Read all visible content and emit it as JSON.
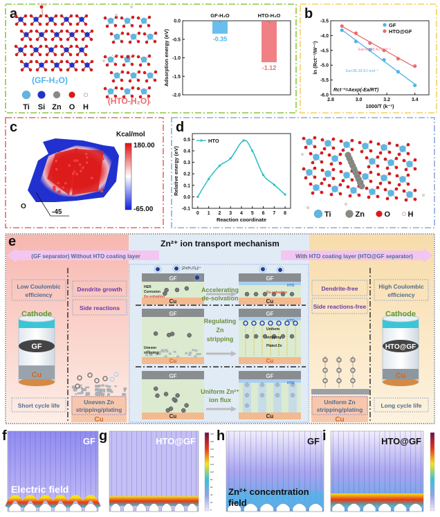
{
  "colors": {
    "ti": "#5fb6e3",
    "si": "#2233cc",
    "zn": "#8a8a85",
    "o": "#e01818",
    "h": "#f3d0d0",
    "gf_blue": "#4fb3ea",
    "hto_red": "#ee6a6e",
    "green_frame": "#8cc63f",
    "yellow_frame": "#f3cf62",
    "red_frame": "#e8676b",
    "blue_frame": "#8ea8d8",
    "line_teal": "#27bcc4"
  },
  "panel_a": {
    "label": "a",
    "gf_caption": "(GF-H₂O)",
    "hto_caption": "(HTO-H₂O)",
    "legend": [
      {
        "el": "Ti",
        "icon": "ti-atom-icon"
      },
      {
        "el": "Si",
        "icon": "si-atom-icon"
      },
      {
        "el": "Zn",
        "icon": "zn-atom-icon"
      },
      {
        "el": "O",
        "icon": "o-atom-icon"
      },
      {
        "el": "H",
        "icon": "h-atom-icon"
      }
    ]
  },
  "panel_b": {
    "label": "b"
  },
  "panel_c": {
    "label": "c",
    "unit": "Kcal/mol",
    "max": "180.00",
    "min": "-65.00",
    "atom_label": "O",
    "atom_value": "-45"
  },
  "panel_d": {
    "label": "d",
    "legend": [
      {
        "el": "Ti"
      },
      {
        "el": "Zn"
      },
      {
        "el": "O"
      },
      {
        "el": "H"
      }
    ]
  },
  "panel_e": {
    "label": "e",
    "title": "Zn²⁺ ion transport mechanism",
    "left_arrow": "(GF separator) Without HTO coating layer",
    "right_arrow": "With HTO coating layer (HTO@GF separator)",
    "left": {
      "low_ce": [
        "Low Coulombic",
        "efficiency"
      ],
      "dendrite": "Dendrite growth",
      "side": "Side reactions",
      "cathode": "Cathode",
      "sep": "GF",
      "cu": "Cu",
      "short": "Short cycle life",
      "uneven": [
        "Uneven Zn",
        "stripping/plating"
      ],
      "cu_bottom": "Cu"
    },
    "right": {
      "high_ce": [
        "High Coulombic",
        "efficiency"
      ],
      "dendrite_free": "Dendrite-free",
      "side_free": "Side reactions-free",
      "cathode": "Cathode",
      "sep": "HTO@GF",
      "cu": "Cu",
      "long": "Long cycle life",
      "uniform": [
        "Uniform Zn",
        "stripping/plating"
      ],
      "cu_bottom": "Cu"
    },
    "rows": [
      {
        "mid": [
          "Accelerating",
          "de-solvation"
        ],
        "left_top": "GF",
        "left_bottom": "Cu",
        "right_top": "GF",
        "right_bottom": "Cu",
        "left_notes": [
          "HER",
          "Corrosion",
          "De-solvation"
        ],
        "right_notes": [
          "HTO",
          "De-solvation"
        ],
        "ion_label": "[Zn(H₂O)₆]²⁺"
      },
      {
        "mid": [
          "Regulating",
          "Zn",
          "stripping"
        ],
        "left_top": "GF",
        "left_bottom": "Cu",
        "right_top": "GF",
        "right_bottom": "Cu",
        "left_notes": [
          "Uneven",
          "stripping"
        ],
        "right_notes": [
          "HTO",
          "Uniform",
          "stripping",
          "Plated Zn"
        ]
      },
      {
        "mid": [
          "Uniform Zn²⁺",
          "ion flux"
        ],
        "left_top": "GF",
        "left_bottom": "Cu",
        "right_top": "GF",
        "right_bottom": "Cu",
        "right_notes": [
          "HTO"
        ]
      }
    ]
  },
  "panel_f": {
    "label": "f",
    "tag": "GF",
    "caption": "Electric field"
  },
  "panel_g": {
    "label": "g",
    "tag": "HTO@GF",
    "colorbar_ticks": [
      "200",
      "180",
      "160",
      "140",
      "120",
      "100",
      "80",
      "60",
      "40",
      "20",
      "0"
    ]
  },
  "panel_h": {
    "label": "h",
    "tag": "GF",
    "caption": [
      "Zn²⁺ concentration",
      "field"
    ]
  },
  "panel_i": {
    "label": "i",
    "tag": "HTO@GF"
  },
  "chart_data": [
    {
      "id": "a",
      "type": "bar",
      "categories": [
        "GF-H₂O",
        "HTO-H₂O"
      ],
      "values": [
        -0.35,
        -1.12
      ],
      "value_labels": [
        "-0.35",
        "-1.12"
      ],
      "ylabel": "Adsorption energy (eV)",
      "ylim": [
        -2.0,
        0.0
      ],
      "yticks": [
        "0.0",
        "-0.5",
        "-1.0",
        "-1.5",
        "-2.0"
      ],
      "colors": [
        "#4fb3ea",
        "#ee6a6e"
      ]
    },
    {
      "id": "b",
      "type": "scatter",
      "xlabel": "1000/T (k⁻¹)",
      "ylabel": "ln (Rct⁻¹/W⁻¹)",
      "xlim": [
        2.8,
        3.5
      ],
      "ylim": [
        -6.0,
        -3.5
      ],
      "xticks": [
        "2.8",
        "3.0",
        "3.2",
        "3.4"
      ],
      "yticks": [
        "-3.5",
        "-4.0",
        "-4.5",
        "-5.0",
        "-5.5",
        "-6.0"
      ],
      "legend": "top-right",
      "series": [
        {
          "name": "GF",
          "color": "#4fb3ea",
          "x": [
            2.88,
            2.98,
            3.08,
            3.18,
            3.28,
            3.4
          ],
          "y": [
            -3.82,
            -4.2,
            -4.48,
            -4.82,
            -5.22,
            -5.68
          ],
          "annotation": "Ea=35.33 KJ mol⁻¹"
        },
        {
          "name": "HTO@GF",
          "color": "#ee6a6e",
          "x": [
            2.88,
            2.98,
            3.08,
            3.18,
            3.28,
            3.4
          ],
          "y": [
            -3.68,
            -3.92,
            -4.25,
            -4.5,
            -4.78,
            -5.03
          ],
          "annotation": "Ea=26.95 KJ mol⁻¹"
        }
      ],
      "formula": "Rct⁻¹=Aexp(-Ea/RT)"
    },
    {
      "id": "d",
      "type": "line",
      "xlabel": "Reaction coordinate",
      "ylabel": "Relative energy (eV)",
      "xlim": [
        -0.5,
        8.5
      ],
      "ylim": [
        -0.1,
        0.55
      ],
      "xticks": [
        "0",
        "1",
        "2",
        "3",
        "4",
        "5",
        "6",
        "7",
        "8"
      ],
      "yticks": [
        "-0.1",
        "0.0",
        "0.1",
        "0.2",
        "0.3",
        "0.4",
        "0.5"
      ],
      "legend": "top-left",
      "series": [
        {
          "name": "HTO",
          "color": "#27bcc4",
          "x": [
            0,
            1,
            2,
            3,
            4.2,
            5,
            6,
            7,
            8
          ],
          "y": [
            0.0,
            0.155,
            0.27,
            0.335,
            0.49,
            0.4,
            0.19,
            0.105,
            0.02
          ]
        }
      ]
    }
  ]
}
